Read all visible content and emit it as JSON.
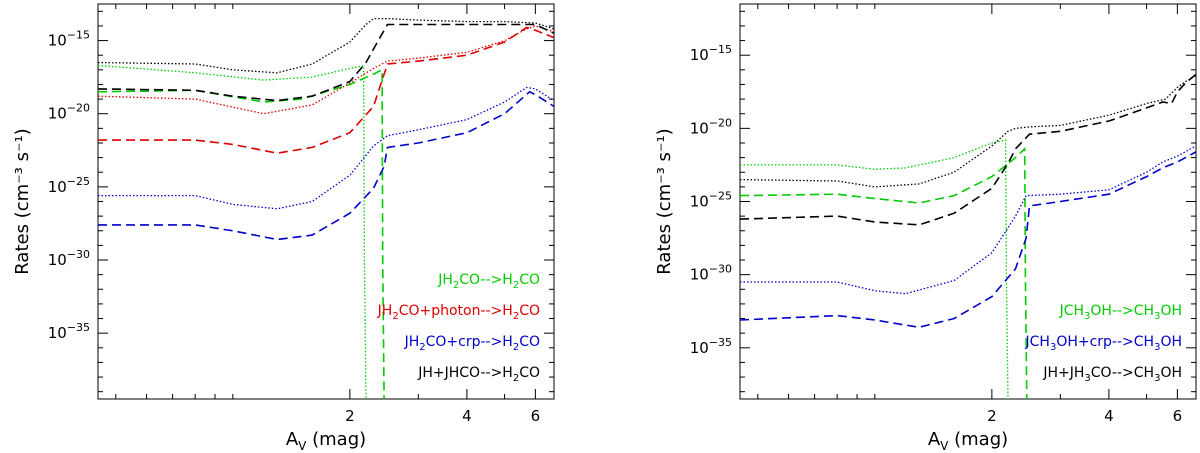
{
  "chart_data": [
    {
      "type": "line",
      "xlabel_main": "A",
      "xlabel_sub": "V",
      "xlabel_rest": " (mag)",
      "ylabel": "Rates (cm⁻³ s⁻¹)",
      "xlim": [
        0.45,
        6.7
      ],
      "ylim": [
        -39.5,
        -12.5
      ],
      "x_ticks": [
        2,
        4,
        6
      ],
      "y_ticks": [
        -15,
        -20,
        -25,
        -30,
        -35
      ],
      "y_tick_base": "10",
      "legend_position": "bottom-right",
      "series": [
        {
          "name": "JH₂CO—>H₂CO",
          "legend_main": "JH",
          "legend_sub": "2",
          "legend_rest": "CO-->H",
          "legend_sub2": "2",
          "legend_end": "CO",
          "color": "#00cc00",
          "dotted": {
            "x": [
              0.45,
              0.8,
              1.2,
              1.6,
              2.0,
              2.1,
              2.17,
              2.18,
              2.2
            ],
            "y": [
              -16.7,
              -17.2,
              -17.7,
              -17.5,
              -16.9,
              -16.8,
              -16.7,
              -30,
              -39.5
            ]
          },
          "dashed": {
            "x": [
              0.45,
              0.8,
              1.2,
              1.5,
              2.0,
              2.3,
              2.42,
              2.43,
              2.45
            ],
            "y": [
              -18.5,
              -18.4,
              -19.2,
              -19.0,
              -18.0,
              -17.3,
              -17.0,
              -30,
              -39.5
            ]
          }
        },
        {
          "name": "JH₂CO+photon—>H₂CO",
          "legend_main": "JH",
          "legend_sub": "2",
          "legend_rest": "CO+photon-->H",
          "legend_sub2": "2",
          "legend_end": "CO",
          "color": "#dd0000",
          "dotted": {
            "x": [
              0.45,
              0.8,
              1.2,
              1.6,
              2.0,
              2.3,
              2.5,
              3.0,
              4.0,
              5.0,
              5.7,
              6.0,
              6.7
            ],
            "y": [
              -18.8,
              -19.0,
              -20.0,
              -19.4,
              -17.9,
              -16.9,
              -16.4,
              -16.2,
              -15.8,
              -15.0,
              -14.2,
              -14.0,
              -14.4
            ]
          },
          "dashed": {
            "x": [
              0.45,
              0.8,
              1.0,
              1.3,
              1.6,
              2.0,
              2.3,
              2.45,
              2.5,
              3.0,
              4.0,
              5.0,
              5.7,
              6.0,
              6.7
            ],
            "y": [
              -21.8,
              -21.8,
              -22.1,
              -22.7,
              -22.3,
              -21.3,
              -19.5,
              -17.3,
              -16.6,
              -16.4,
              -16.0,
              -15.1,
              -14.1,
              -14.3,
              -14.8
            ]
          }
        },
        {
          "name": "JH₂CO+crp—>H₂CO",
          "legend_main": "JH",
          "legend_sub": "2",
          "legend_rest": "CO+crp-->H",
          "legend_sub2": "2",
          "legend_end": "CO",
          "color": "#0000cc",
          "dotted": {
            "x": [
              0.45,
              0.8,
              1.0,
              1.3,
              1.6,
              2.0,
              2.3,
              2.5,
              3.0,
              4.0,
              5.0,
              5.7,
              6.0,
              6.7
            ],
            "y": [
              -25.6,
              -25.6,
              -26.2,
              -26.5,
              -26.0,
              -24.2,
              -22.2,
              -21.5,
              -21.1,
              -20.4,
              -19.2,
              -18.2,
              -18.3,
              -19.1
            ]
          },
          "dashed": {
            "x": [
              0.45,
              0.8,
              1.0,
              1.3,
              1.6,
              2.0,
              2.3,
              2.45,
              2.5,
              3.0,
              4.0,
              5.0,
              5.8,
              6.0,
              6.7
            ],
            "y": [
              -27.6,
              -27.6,
              -28.0,
              -28.6,
              -28.3,
              -26.8,
              -25.1,
              -23.6,
              -22.3,
              -22.0,
              -21.3,
              -20.0,
              -18.5,
              -18.7,
              -19.5
            ]
          }
        },
        {
          "name": "JH+JHCO—>H₂CO",
          "legend_main": "JH+JHCO-->H",
          "legend_sub": "2",
          "legend_rest": "CO",
          "legend_sub2": "",
          "legend_end": "",
          "color": "#000000",
          "dotted": {
            "x": [
              0.45,
              0.8,
              1.0,
              1.3,
              1.6,
              2.0,
              2.2,
              2.3,
              2.5,
              3.0,
              4.0,
              5.0,
              6.0,
              6.7
            ],
            "y": [
              -16.5,
              -16.6,
              -17.0,
              -17.2,
              -16.6,
              -15.1,
              -13.9,
              -13.5,
              -13.5,
              -13.6,
              -13.7,
              -13.7,
              -13.8,
              -14.2
            ]
          },
          "dashed": {
            "x": [
              0.45,
              0.8,
              1.0,
              1.3,
              1.6,
              2.0,
              2.2,
              2.4,
              2.5,
              3.0,
              4.0,
              5.0,
              6.0,
              6.7
            ],
            "y": [
              -18.3,
              -18.4,
              -18.8,
              -19.1,
              -18.8,
              -17.8,
              -16.5,
              -14.7,
              -13.9,
              -13.9,
              -13.9,
              -13.9,
              -13.9,
              -14.5
            ]
          }
        }
      ]
    },
    {
      "type": "line",
      "xlabel_main": "A",
      "xlabel_sub": "V",
      "xlabel_rest": " (mag)",
      "ylabel": "Rates (cm⁻³ s⁻¹)",
      "xlim": [
        0.45,
        6.7
      ],
      "ylim": [
        -38.5,
        -11.5
      ],
      "x_ticks": [
        2,
        4,
        6
      ],
      "y_ticks": [
        -15,
        -20,
        -25,
        -30,
        -35
      ],
      "y_tick_base": "10",
      "legend_position": "bottom-right",
      "series": [
        {
          "name": "JCH₃OH—>CH₃OH",
          "legend_main": "JCH",
          "legend_sub": "3",
          "legend_rest": "OH-->CH",
          "legend_sub2": "3",
          "legend_end": "OH",
          "color": "#00cc00",
          "dotted": {
            "x": [
              0.45,
              0.8,
              1.0,
              1.2,
              1.6,
              2.0,
              2.17,
              2.18,
              2.2
            ],
            "y": [
              -22.5,
              -22.5,
              -22.8,
              -22.7,
              -22.0,
              -21.0,
              -20.8,
              -30,
              -38.5
            ]
          },
          "dashed": {
            "x": [
              0.45,
              0.8,
              1.0,
              1.3,
              1.6,
              2.0,
              2.3,
              2.43,
              2.44,
              2.46
            ],
            "y": [
              -24.6,
              -24.5,
              -24.8,
              -25.1,
              -24.6,
              -23.3,
              -22.0,
              -21.4,
              -30,
              -38.5
            ]
          }
        },
        {
          "name": "JCH₃OH+crp—>CH₃OH",
          "legend_main": "JCH",
          "legend_sub": "3",
          "legend_rest": "OH+crp-->CH",
          "legend_sub2": "3",
          "legend_end": "OH",
          "color": "#0000cc",
          "dotted": {
            "x": [
              0.45,
              0.8,
              1.0,
              1.2,
              1.6,
              2.0,
              2.3,
              2.45,
              3.0,
              4.0,
              5.0,
              5.5,
              6.0,
              6.7
            ],
            "y": [
              -30.5,
              -30.5,
              -31.1,
              -31.3,
              -30.4,
              -28.5,
              -26.0,
              -24.6,
              -24.5,
              -24.2,
              -23.0,
              -22.3,
              -21.9,
              -21.2
            ]
          },
          "dashed": {
            "x": [
              0.45,
              0.8,
              1.0,
              1.3,
              1.6,
              2.0,
              2.3,
              2.45,
              2.5,
              3.0,
              4.0,
              5.0,
              5.5,
              6.0,
              6.7
            ],
            "y": [
              -33.1,
              -32.8,
              -33.1,
              -33.6,
              -33.0,
              -31.5,
              -29.6,
              -27.5,
              -25.3,
              -25.0,
              -24.5,
              -23.3,
              -22.7,
              -22.3,
              -21.6
            ]
          }
        },
        {
          "name": "JH+JH₃CO—>CH₃OH",
          "legend_main": "JH+JH",
          "legend_sub": "3",
          "legend_rest": "CO-->CH",
          "legend_sub2": "3",
          "legend_end": "OH",
          "color": "#000000",
          "dotted": {
            "x": [
              0.45,
              0.8,
              1.0,
              1.3,
              1.6,
              2.0,
              2.2,
              2.3,
              2.5,
              3.0,
              4.0,
              5.0,
              5.6,
              5.8,
              6.0,
              6.3,
              6.7
            ],
            "y": [
              -23.5,
              -23.6,
              -24.0,
              -23.8,
              -23.0,
              -21.2,
              -20.2,
              -20.0,
              -19.9,
              -19.8,
              -19.1,
              -18.3,
              -18.0,
              -17.6,
              -17.2,
              -16.8,
              -16.4
            ]
          },
          "dashed": {
            "x": [
              0.45,
              0.8,
              1.0,
              1.3,
              1.6,
              2.0,
              2.2,
              2.3,
              2.5,
              3.0,
              4.0,
              5.0,
              5.5,
              5.8,
              6.0,
              6.3,
              6.7
            ],
            "y": [
              -26.2,
              -26.0,
              -26.4,
              -26.6,
              -25.8,
              -24.1,
              -22.4,
              -21.4,
              -20.4,
              -20.2,
              -19.5,
              -18.6,
              -18.2,
              -18.3,
              -17.5,
              -16.9,
              -16.3
            ]
          }
        }
      ]
    }
  ]
}
